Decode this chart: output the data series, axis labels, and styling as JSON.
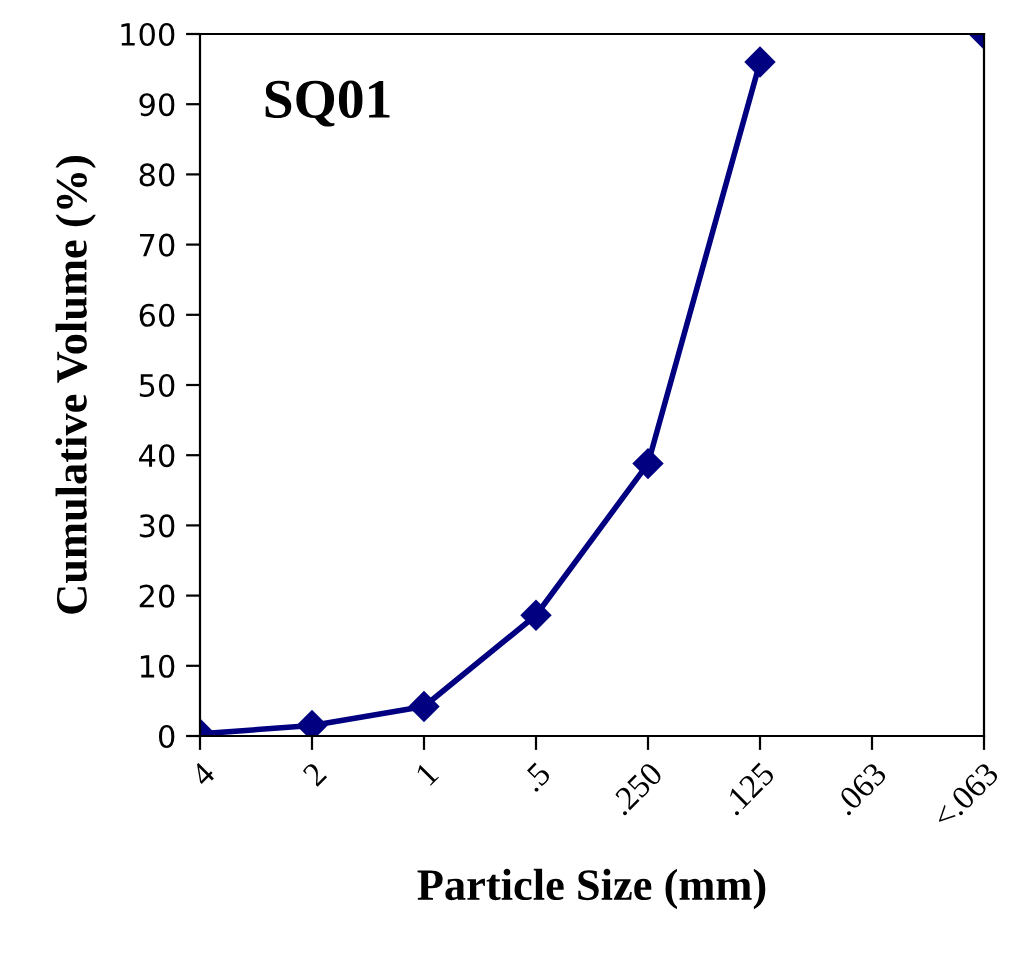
{
  "chart_data": {
    "type": "line",
    "title": "SQ01",
    "xlabel": "Particle Size (mm)",
    "ylabel": "Cumulative Volume (%)",
    "categories": [
      "4",
      "2",
      "1",
      ".5",
      ".250",
      ".125",
      ".063",
      "<.063"
    ],
    "series": [
      {
        "color": "#000080",
        "values": [
          0.3,
          1.5,
          4.2,
          17.2,
          38.8,
          96,
          null,
          100
        ]
      }
    ],
    "ylim": [
      0,
      100
    ],
    "yticks": [
      0,
      10,
      20,
      30,
      40,
      50,
      60,
      70,
      80,
      90,
      100
    ],
    "grid": false,
    "legend": false,
    "marker": "diamond",
    "line_style": "solid"
  }
}
